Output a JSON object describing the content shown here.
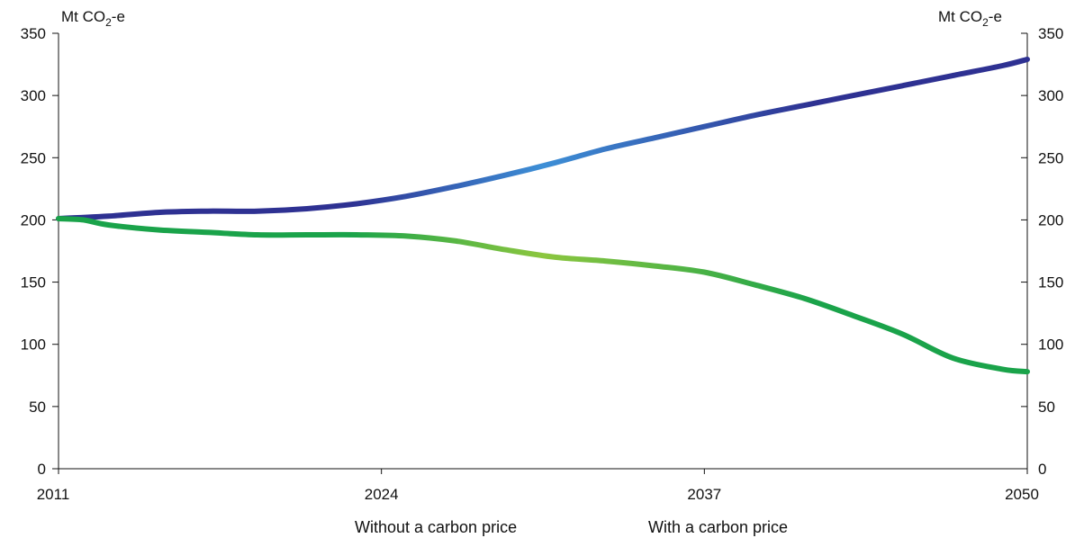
{
  "chart_data": {
    "type": "line",
    "y_unit_left": "Mt CO",
    "y_unit_right": "Mt CO",
    "y_unit_sub": "2",
    "y_unit_suffix": "-e",
    "xlim": [
      2011,
      2050
    ],
    "ylim": [
      0,
      350
    ],
    "x_ticks": [
      "2011",
      "2024",
      "2037",
      "2050"
    ],
    "y_ticks": [
      "0",
      "50",
      "100",
      "150",
      "200",
      "250",
      "300",
      "350"
    ],
    "grid": false,
    "legend_position": "bottom",
    "series": [
      {
        "name": "Without a carbon price",
        "color_start": "#2e3192",
        "color_mid": "#3d8fd6",
        "x": [
          2011,
          2013,
          2015,
          2017,
          2019,
          2021,
          2023,
          2025,
          2027,
          2029,
          2031,
          2033,
          2035,
          2037,
          2039,
          2041,
          2043,
          2045,
          2047,
          2049,
          2050
        ],
        "values": [
          201,
          203,
          206,
          207,
          207,
          209,
          213,
          219,
          227,
          236,
          246,
          257,
          266,
          275,
          284,
          292,
          300,
          308,
          316,
          324,
          329
        ]
      },
      {
        "name": "With a carbon price",
        "color_start": "#1aa34a",
        "color_mid": "#8cc63f",
        "x": [
          2011,
          2012,
          2013,
          2015,
          2017,
          2019,
          2021,
          2023,
          2025,
          2027,
          2029,
          2031,
          2033,
          2035,
          2037,
          2039,
          2041,
          2043,
          2045,
          2047,
          2049,
          2050
        ],
        "values": [
          201,
          200,
          196,
          192,
          190,
          188,
          188,
          188,
          187,
          183,
          176,
          170,
          167,
          163,
          158,
          148,
          137,
          123,
          108,
          89,
          80,
          78
        ]
      }
    ]
  }
}
